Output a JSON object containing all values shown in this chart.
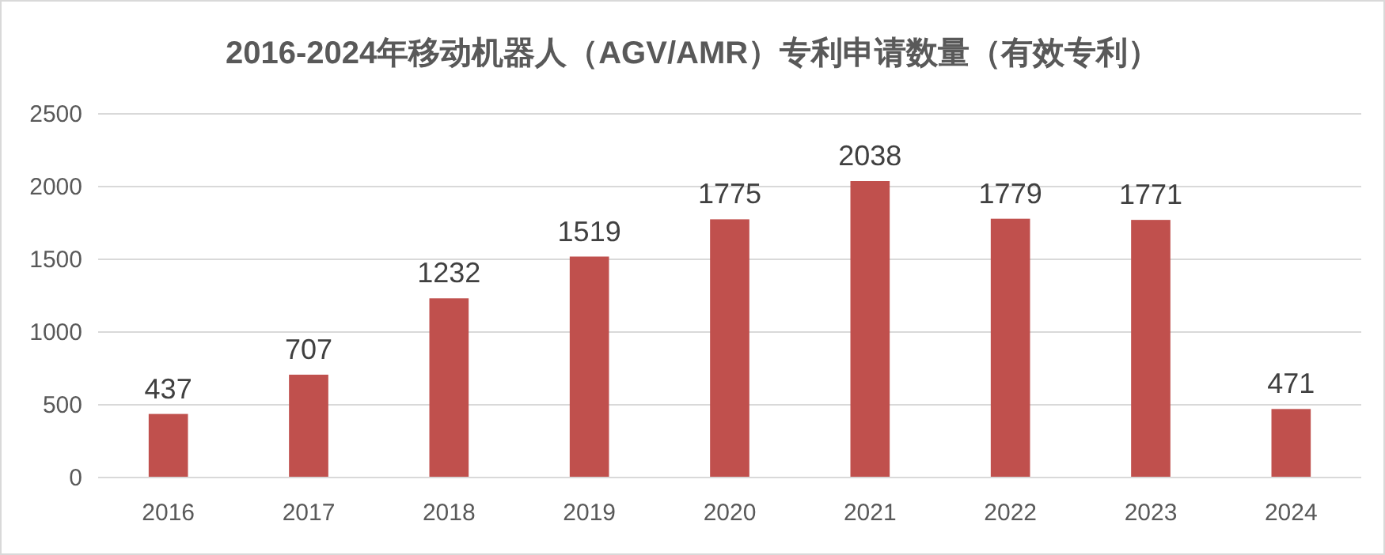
{
  "chart_data": {
    "type": "bar",
    "title": "2016-2024年移动机器人（AGV/AMR）专利申请数量（有效专利）",
    "categories": [
      "2016",
      "2017",
      "2018",
      "2019",
      "2020",
      "2021",
      "2022",
      "2023",
      "2024"
    ],
    "values": [
      437,
      707,
      1232,
      1519,
      1775,
      2038,
      1779,
      1771,
      471
    ],
    "color": "#c0504d",
    "ylim": [
      0,
      2500
    ],
    "yticks": [
      0,
      500,
      1000,
      1500,
      2000,
      2500
    ],
    "grid": "y",
    "data_labels": true
  }
}
